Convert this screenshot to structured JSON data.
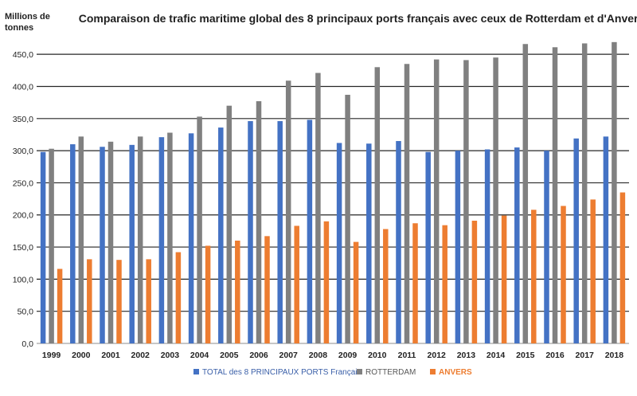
{
  "chart_data": {
    "type": "bar",
    "title": "Comparaison de trafic maritime global des 8 principaux ports français avec ceux de Rotterdam et d'Anvers",
    "unit_label_line1": "Millions de",
    "unit_label_line2": "tonnes",
    "categories": [
      "1999",
      "2000",
      "2001",
      "2002",
      "2003",
      "2004",
      "2005",
      "2006",
      "2007",
      "2008",
      "2009",
      "2010",
      "2011",
      "2012",
      "2013",
      "2014",
      "2015",
      "2016",
      "2017",
      "2018"
    ],
    "ylim": [
      0,
      475
    ],
    "yticks": [
      0,
      50,
      100,
      150,
      200,
      250,
      300,
      350,
      400,
      450
    ],
    "ytick_labels": [
      "0,0",
      "50,0",
      "100,0",
      "150,0",
      "200,0",
      "250,0",
      "300,0",
      "350,0",
      "400,0",
      "450,0"
    ],
    "grid": true,
    "legend_position": "bottom",
    "series": [
      {
        "name": "TOTAL des 8 PRINCIPAUX PORTS Français",
        "color": "#4472c4",
        "text_color": "#3a5fa8",
        "values": [
          298,
          310,
          306,
          309,
          321,
          327,
          336,
          346,
          346,
          348,
          312,
          311,
          315,
          298,
          300,
          302,
          305,
          300,
          319,
          322
        ]
      },
      {
        "name": "ROTTERDAM",
        "color": "#808080",
        "text_color": "#595959",
        "values": [
          303,
          322,
          314,
          322,
          328,
          353,
          370,
          377,
          409,
          421,
          387,
          430,
          435,
          442,
          441,
          445,
          466,
          461,
          467,
          469
        ]
      },
      {
        "name": "ANVERS",
        "color": "#ed7d31",
        "text_color": "#ed7d31",
        "values": [
          116,
          131,
          130,
          131,
          142,
          152,
          160,
          167,
          183,
          190,
          158,
          178,
          187,
          184,
          191,
          199,
          208,
          214,
          224,
          235
        ]
      }
    ]
  }
}
